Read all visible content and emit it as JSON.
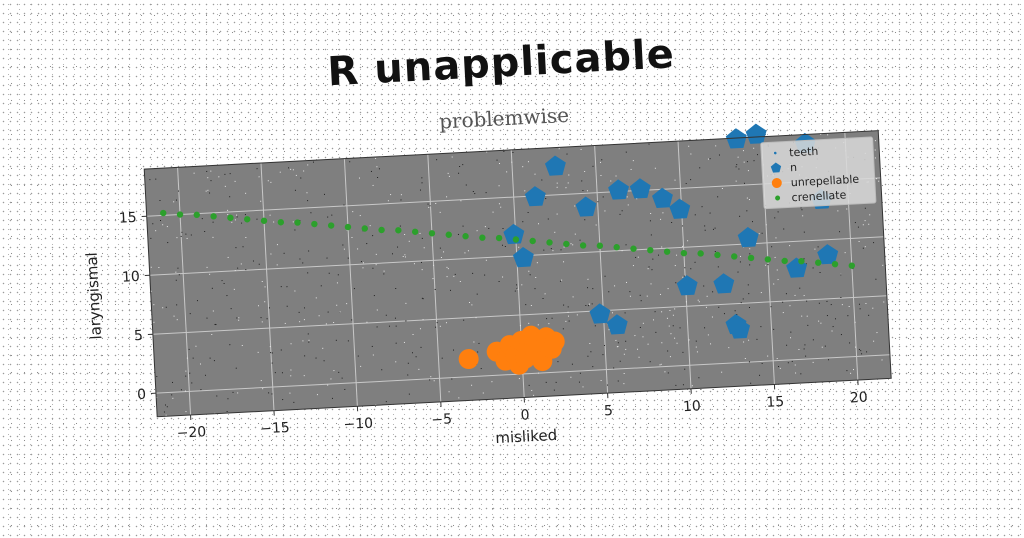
{
  "chart_data": {
    "type": "scatter",
    "title": "R unapplicable",
    "subtitle": "problemwise",
    "xlabel": "misliked",
    "ylabel": "laryngismal",
    "xlim": [
      -22,
      22
    ],
    "ylim": [
      -2,
      19
    ],
    "xticks": [
      -20,
      -15,
      -10,
      -5,
      0,
      5,
      10,
      15,
      20
    ],
    "yticks": [
      0,
      5,
      10,
      15
    ],
    "grid": true,
    "legend_position": "top-right",
    "colors": {
      "background": "#7f7f7f",
      "grid": "#c8c8c8",
      "teeth": "#1f77b4",
      "n": "#1f77b4",
      "unrepellable": "#ff7f0e",
      "crenellate": "#2ca02c"
    },
    "series": [
      {
        "name": "teeth",
        "marker": "point",
        "x": [],
        "y": []
      },
      {
        "name": "n",
        "marker": "pentagon",
        "x": [
          -0.1,
          0.4,
          1.3,
          2.6,
          4.3,
          4.8,
          5.8,
          6.3,
          7.6,
          8.9,
          9.9,
          10.1,
          12.3,
          12.9,
          13.1,
          13.5,
          13.9,
          14.7,
          16.7,
          17.6,
          18.4,
          18.6
        ],
        "y": [
          11.8,
          9.8,
          14.9,
          17.4,
          13.8,
          4.7,
          3.7,
          15.1,
          15.1,
          14.2,
          13.2,
          6.7,
          6.7,
          3.2,
          2.8,
          18.9,
          10.5,
          19.2,
          7.7,
          18.2,
          13.4,
          8.7
        ]
      },
      {
        "name": "unrepellable",
        "marker": "circle",
        "x": [
          -3.2,
          -1.5,
          -1.0,
          -0.7,
          -0.4,
          -0.2,
          0.0,
          0.2,
          0.4,
          0.6,
          0.8,
          1.0,
          1.2,
          1.5,
          1.8,
          2.0
        ],
        "y": [
          1.5,
          2.0,
          1.2,
          2.5,
          1.6,
          0.8,
          2.8,
          1.3,
          2.2,
          3.2,
          1.7,
          2.6,
          1.0,
          3.0,
          2.0,
          2.6
        ]
      },
      {
        "name": "crenellate",
        "marker": "dot",
        "x": [
          -21.0,
          -20.0,
          -19.0,
          -18.0,
          -17.0,
          -16.0,
          -15.0,
          -14.0,
          -13.0,
          -12.0,
          -11.0,
          -10.0,
          -9.0,
          -8.0,
          -7.0,
          -6.0,
          -5.0,
          -4.0,
          -3.0,
          -2.0,
          -1.0,
          0.0,
          1.0,
          2.0,
          3.0,
          4.0,
          5.0,
          6.0,
          7.0,
          8.0,
          9.0,
          10.0,
          11.0,
          12.0,
          13.0,
          14.0,
          15.0,
          16.0,
          17.0,
          18.0,
          19.0,
          20.0
        ],
        "y": [
          15.2,
          15.0,
          14.9,
          14.7,
          14.5,
          14.3,
          14.1,
          13.9,
          13.8,
          13.6,
          13.4,
          13.2,
          13.0,
          12.8,
          12.7,
          12.5,
          12.3,
          12.1,
          11.9,
          11.7,
          11.6,
          11.4,
          11.2,
          11.0,
          10.8,
          10.6,
          10.5,
          10.3,
          10.1,
          9.9,
          9.7,
          9.5,
          9.4,
          9.2,
          9.0,
          8.8,
          8.6,
          8.4,
          8.3,
          8.1,
          7.9,
          7.7
        ]
      }
    ]
  }
}
